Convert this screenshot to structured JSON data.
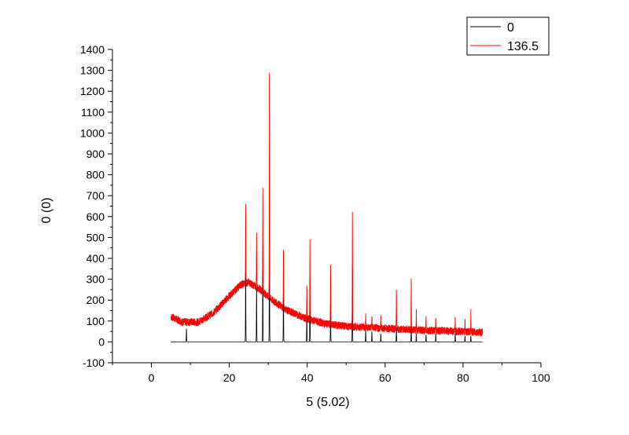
{
  "chart_data": {
    "type": "line",
    "title": "",
    "xlabel": "5 (5.02)",
    "ylabel": "0 (0)",
    "xlim": [
      -10,
      100
    ],
    "ylim": [
      -100,
      1400
    ],
    "x_ticks": [
      0,
      20,
      40,
      60,
      80,
      100
    ],
    "y_ticks": [
      -100,
      0,
      100,
      200,
      300,
      400,
      500,
      600,
      700,
      800,
      900,
      1000,
      1100,
      1200,
      1300,
      1400
    ],
    "grid": false,
    "legend_position": "top-right",
    "series": [
      {
        "name": "0",
        "color": "#000000",
        "x_range": [
          5,
          85
        ],
        "baseline": 0,
        "peaks": [
          [
            9,
            65
          ],
          [
            24.2,
            370
          ],
          [
            27.0,
            270
          ],
          [
            28.6,
            450
          ],
          [
            30.3,
            640
          ],
          [
            33.9,
            280
          ],
          [
            39.9,
            160
          ],
          [
            40.7,
            310
          ],
          [
            46.0,
            200
          ],
          [
            51.6,
            380
          ],
          [
            55.0,
            60
          ],
          [
            56.6,
            50
          ],
          [
            58.9,
            40
          ],
          [
            62.9,
            70
          ],
          [
            66.7,
            80
          ],
          [
            68.0,
            40
          ],
          [
            70.5,
            35
          ],
          [
            73.0,
            40
          ],
          [
            78.0,
            40
          ],
          [
            80.5,
            30
          ],
          [
            82.0,
            30
          ]
        ]
      },
      {
        "name": "136.5",
        "color": "#ff0000",
        "x_range": [
          5,
          85
        ],
        "background": [
          [
            5,
            120
          ],
          [
            8,
            95
          ],
          [
            12,
            95
          ],
          [
            16,
            140
          ],
          [
            20,
            220
          ],
          [
            23,
            275
          ],
          [
            25,
            285
          ],
          [
            28,
            250
          ],
          [
            31,
            200
          ],
          [
            35,
            150
          ],
          [
            40,
            110
          ],
          [
            45,
            85
          ],
          [
            50,
            75
          ],
          [
            55,
            70
          ],
          [
            60,
            65
          ],
          [
            70,
            55
          ],
          [
            80,
            50
          ],
          [
            85,
            45
          ]
        ],
        "peaks": [
          [
            24.2,
            660
          ],
          [
            27.0,
            530
          ],
          [
            28.6,
            730
          ],
          [
            30.3,
            1280
          ],
          [
            33.9,
            450
          ],
          [
            39.9,
            270
          ],
          [
            40.7,
            480
          ],
          [
            46.0,
            360
          ],
          [
            51.6,
            610
          ],
          [
            55.0,
            130
          ],
          [
            56.6,
            120
          ],
          [
            58.9,
            115
          ],
          [
            62.9,
            250
          ],
          [
            66.7,
            310
          ],
          [
            68.0,
            140
          ],
          [
            70.5,
            125
          ],
          [
            73.0,
            120
          ],
          [
            78.0,
            120
          ],
          [
            80.5,
            110
          ],
          [
            82.0,
            140
          ]
        ]
      }
    ]
  }
}
